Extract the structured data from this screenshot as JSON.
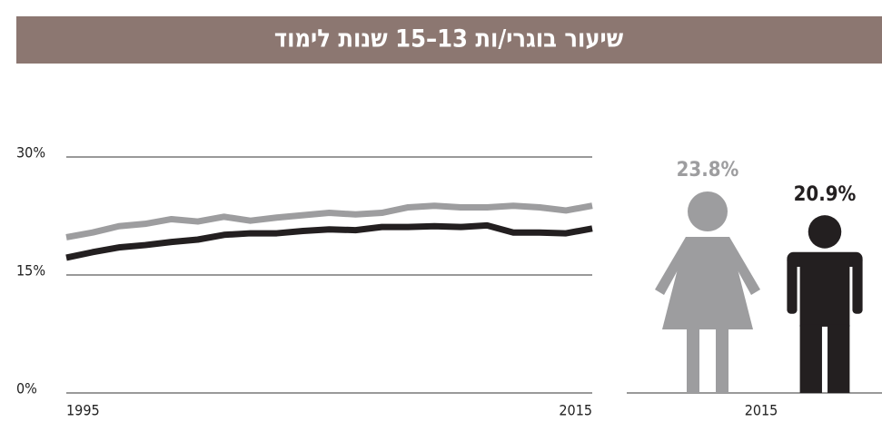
{
  "chart_data": [
    {
      "type": "line",
      "title": "שיעור בוגרי/ות 13–15 שנות לימוד",
      "x": [
        1995,
        1996,
        1997,
        1998,
        1999,
        2000,
        2001,
        2002,
        2003,
        2004,
        2005,
        2006,
        2007,
        2008,
        2009,
        2010,
        2011,
        2012,
        2013,
        2014,
        2015
      ],
      "xlim": [
        1995,
        2015
      ],
      "xticks": [
        1995,
        2015
      ],
      "ylim": [
        0,
        30
      ],
      "yticks": [
        {
          "value": 0,
          "label": "0%"
        },
        {
          "value": 15,
          "label": "15%"
        },
        {
          "value": 30,
          "label": "30%"
        }
      ],
      "grid": true,
      "series": [
        {
          "color": "#9d9d9f",
          "values": [
            19.8,
            20.4,
            21.2,
            21.5,
            22.1,
            21.8,
            22.4,
            21.9,
            22.3,
            22.6,
            22.9,
            22.7,
            22.9,
            23.6,
            23.8,
            23.6,
            23.6,
            23.8,
            23.6,
            23.2,
            23.8
          ]
        },
        {
          "color": "#231f20",
          "values": [
            17.2,
            17.9,
            18.5,
            18.8,
            19.2,
            19.5,
            20.1,
            20.3,
            20.3,
            20.6,
            20.8,
            20.7,
            21.1,
            21.1,
            21.2,
            21.1,
            21.3,
            20.4,
            20.4,
            20.3,
            20.9
          ]
        }
      ]
    },
    {
      "type": "pictogram",
      "x_label": "2015",
      "values": [
        23.8,
        20.9
      ],
      "value_labels": [
        "23.8%",
        "20.9%"
      ],
      "colors": [
        "#9d9d9f",
        "#231f20"
      ]
    }
  ]
}
